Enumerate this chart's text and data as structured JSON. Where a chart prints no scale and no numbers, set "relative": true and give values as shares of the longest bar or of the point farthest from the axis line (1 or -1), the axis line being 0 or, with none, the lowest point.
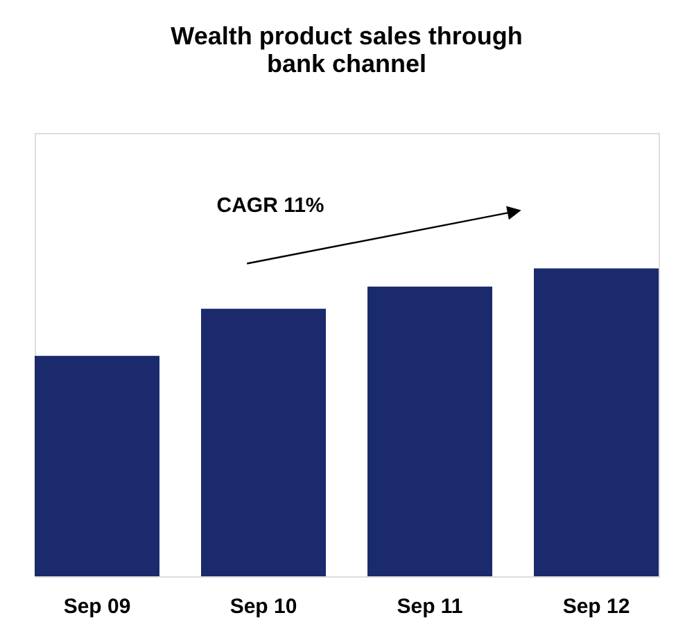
{
  "chart_data": {
    "type": "bar",
    "title": [
      "Wealth product sales through",
      "bank channel"
    ],
    "categories": [
      "Sep 09",
      "Sep 10",
      "Sep 11",
      "Sep 12"
    ],
    "values": [
      0.716,
      0.869,
      0.941,
      1
    ],
    "color": "#1a2a6c",
    "relative": true,
    "annotations": [
      "CAGR 11%"
    ]
  }
}
